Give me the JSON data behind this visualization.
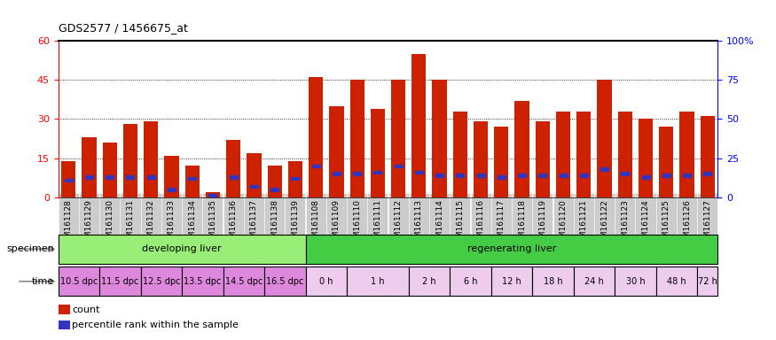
{
  "title": "GDS2577 / 1456675_at",
  "samples": [
    "GSM161128",
    "GSM161129",
    "GSM161130",
    "GSM161131",
    "GSM161132",
    "GSM161133",
    "GSM161134",
    "GSM161135",
    "GSM161136",
    "GSM161137",
    "GSM161138",
    "GSM161139",
    "GSM161108",
    "GSM161109",
    "GSM161110",
    "GSM161111",
    "GSM161112",
    "GSM161113",
    "GSM161114",
    "GSM161115",
    "GSM161116",
    "GSM161117",
    "GSM161118",
    "GSM161119",
    "GSM161120",
    "GSM161121",
    "GSM161122",
    "GSM161123",
    "GSM161124",
    "GSM161125",
    "GSM161126",
    "GSM161127"
  ],
  "counts": [
    14,
    23,
    21,
    28,
    29,
    16,
    12,
    2,
    22,
    17,
    12,
    14,
    46,
    35,
    45,
    34,
    45,
    55,
    45,
    33,
    29,
    27,
    37,
    29,
    33,
    33,
    45,
    33,
    30,
    27,
    33,
    31
  ],
  "percentile_ranks": [
    11,
    13,
    13,
    13,
    13,
    5,
    12,
    1,
    13,
    7,
    5,
    12,
    20,
    15,
    15,
    16,
    20,
    16,
    14,
    14,
    14,
    13,
    14,
    14,
    14,
    14,
    18,
    15,
    13,
    14,
    14,
    15
  ],
  "ylim_left": [
    0,
    60
  ],
  "ylim_right": [
    0,
    100
  ],
  "yticks_left": [
    0,
    15,
    30,
    45,
    60
  ],
  "yticks_right": [
    0,
    25,
    50,
    75,
    100
  ],
  "ytick_labels_right": [
    "0",
    "25",
    "50",
    "75",
    "100%"
  ],
  "bar_color": "#cc2200",
  "percentile_color": "#3333bb",
  "xtick_bg": "#cccccc",
  "specimen_groups": [
    {
      "label": "developing liver",
      "start": 0,
      "end": 12,
      "color": "#99ee77"
    },
    {
      "label": "regenerating liver",
      "start": 12,
      "end": 32,
      "color": "#44cc44"
    }
  ],
  "time_groups": [
    {
      "label": "10.5 dpc",
      "start": 0,
      "end": 2
    },
    {
      "label": "11.5 dpc",
      "start": 2,
      "end": 4
    },
    {
      "label": "12.5 dpc",
      "start": 4,
      "end": 6
    },
    {
      "label": "13.5 dpc",
      "start": 6,
      "end": 8
    },
    {
      "label": "14.5 dpc",
      "start": 8,
      "end": 10
    },
    {
      "label": "16.5 dpc",
      "start": 10,
      "end": 12
    },
    {
      "label": "0 h",
      "start": 12,
      "end": 14
    },
    {
      "label": "1 h",
      "start": 14,
      "end": 17
    },
    {
      "label": "2 h",
      "start": 17,
      "end": 19
    },
    {
      "label": "6 h",
      "start": 19,
      "end": 21
    },
    {
      "label": "12 h",
      "start": 21,
      "end": 23
    },
    {
      "label": "18 h",
      "start": 23,
      "end": 25
    },
    {
      "label": "24 h",
      "start": 25,
      "end": 27
    },
    {
      "label": "30 h",
      "start": 27,
      "end": 29
    },
    {
      "label": "48 h",
      "start": 29,
      "end": 31
    },
    {
      "label": "72 h",
      "start": 31,
      "end": 32
    }
  ],
  "time_dpc_color": "#dd88dd",
  "time_h_color": "#eeccee",
  "legend_items": [
    {
      "label": "count",
      "color": "#cc2200"
    },
    {
      "label": "percentile rank within the sample",
      "color": "#3333bb"
    }
  ]
}
